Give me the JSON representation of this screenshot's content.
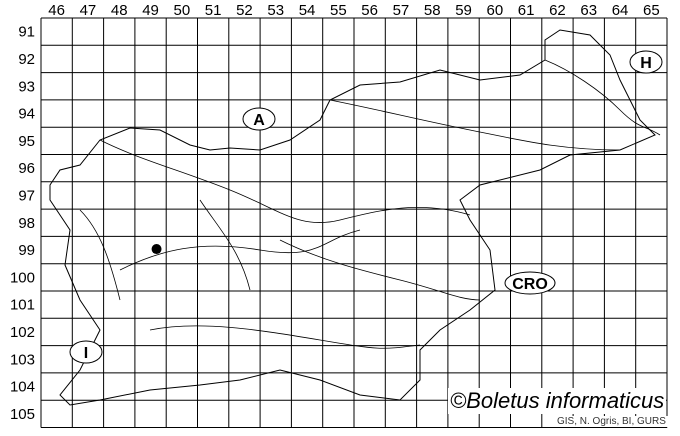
{
  "map": {
    "columns": [
      "46",
      "47",
      "48",
      "49",
      "50",
      "51",
      "52",
      "53",
      "54",
      "55",
      "56",
      "57",
      "58",
      "59",
      "60",
      "61",
      "62",
      "63",
      "64",
      "65"
    ],
    "rows": [
      "91",
      "92",
      "93",
      "94",
      "95",
      "96",
      "97",
      "98",
      "99",
      "100",
      "101",
      "102",
      "103",
      "104",
      "105"
    ],
    "country_labels": [
      {
        "id": "A",
        "text": "A"
      },
      {
        "id": "H",
        "text": "H"
      },
      {
        "id": "CRO",
        "text": "CRO"
      },
      {
        "id": "I",
        "text": "I"
      }
    ],
    "occurrence": {
      "column": "49",
      "row": "99"
    },
    "line_color": "#000000"
  },
  "credit": "©Boletus informaticus",
  "source": "GIS, N. Ogris, BI, GURS"
}
